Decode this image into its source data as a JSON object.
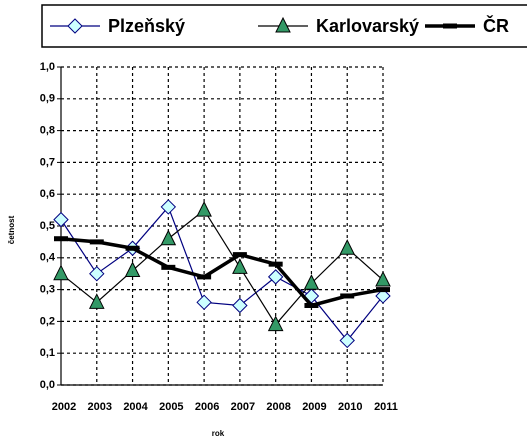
{
  "chart_data": {
    "type": "line",
    "categories": [
      "2002",
      "2003",
      "2004",
      "2005",
      "2006",
      "2007",
      "2008",
      "2009",
      "2010",
      "2011"
    ],
    "series": [
      {
        "name": "Plzeňský",
        "color": "#000080",
        "marker": "diamond",
        "marker_fill": "#ccffff",
        "values": [
          0.52,
          0.35,
          0.43,
          0.56,
          0.26,
          0.25,
          0.34,
          0.28,
          0.14,
          0.28
        ]
      },
      {
        "name": "Karlovarský",
        "color": "#000000",
        "marker": "triangle",
        "marker_fill": "#339966",
        "values": [
          0.35,
          0.26,
          0.36,
          0.46,
          0.55,
          0.37,
          0.19,
          0.32,
          0.43,
          0.33
        ]
      },
      {
        "name": "ČR",
        "color": "#000000",
        "marker": "dash",
        "marker_fill": "#000000",
        "values": [
          0.46,
          0.45,
          0.43,
          0.37,
          0.34,
          0.41,
          0.38,
          0.25,
          0.28,
          0.3
        ]
      }
    ],
    "xlabel": "rok",
    "ylabel": "četnost",
    "ylim": [
      0,
      1
    ],
    "yticks": [
      {
        "value": 0,
        "label": "0,0"
      },
      {
        "value": 0.1,
        "label": "0,1"
      },
      {
        "value": 0.2,
        "label": "0,2"
      },
      {
        "value": 0.3,
        "label": "0,3"
      },
      {
        "value": 0.4,
        "label": "0,4"
      },
      {
        "value": 0.5,
        "label": "0,5"
      },
      {
        "value": 0.6,
        "label": "0,6"
      },
      {
        "value": 0.7,
        "label": "0,7"
      },
      {
        "value": 0.8,
        "label": "0,8"
      },
      {
        "value": 0.9,
        "label": "0,9"
      },
      {
        "value": 1,
        "label": "1,0"
      }
    ],
    "grid": true,
    "legend": "top"
  }
}
